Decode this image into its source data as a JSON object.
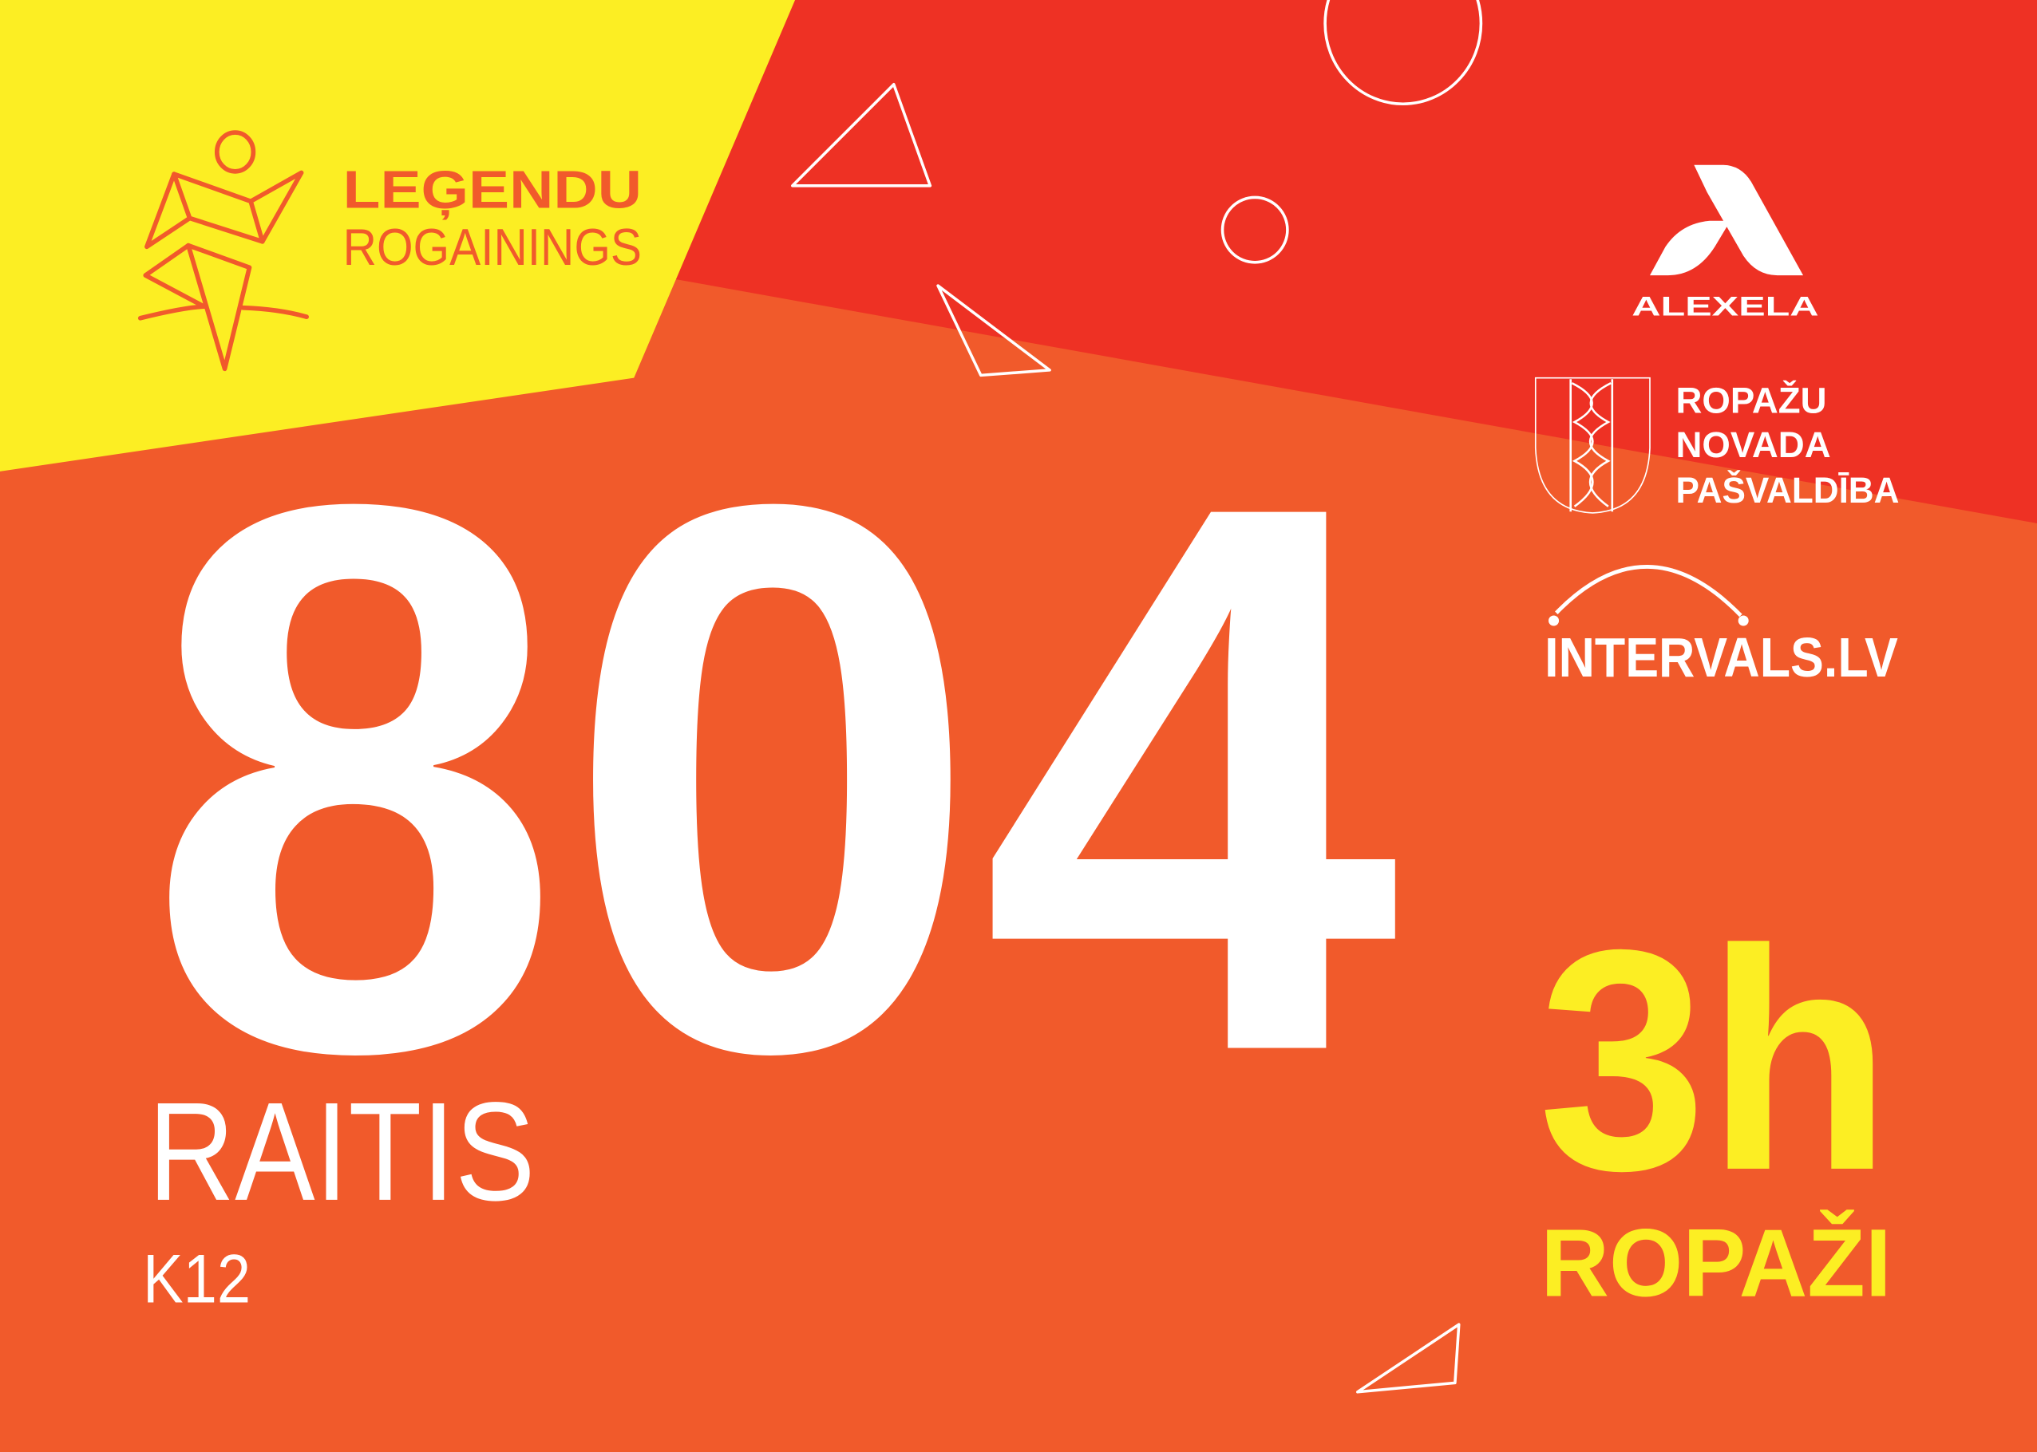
{
  "colors": {
    "yellow": "#FCEE23",
    "red": "#EE3124",
    "orange": "#F15A2B",
    "white": "#FFFFFF"
  },
  "event_logo": {
    "line1": "LEĢENDU",
    "line2": "ROGAININGS"
  },
  "sponsors": {
    "alexela": {
      "wordmark": "ALEXELA",
      "icon": "alexela-a-icon"
    },
    "ropazi": {
      "lines": [
        "ROPAŽU",
        "NOVADA",
        "PAŠVALDĪBA"
      ],
      "icon": "coat-of-arms-icon"
    },
    "intervals": {
      "wordmark": "INTERVALS.LV"
    }
  },
  "bib": {
    "number": "804",
    "name": "RAITIS",
    "category": "K12",
    "duration": "3h",
    "location": "ROPAŽI"
  }
}
